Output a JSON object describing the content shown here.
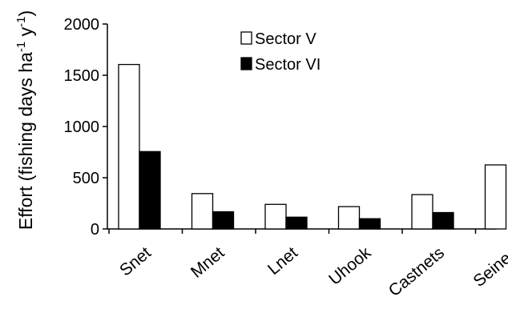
{
  "chart_data": {
    "type": "bar",
    "categories": [
      "Snet",
      "Mnet",
      "Lnet",
      "Uhook",
      "Castnets",
      "Seines"
    ],
    "series": [
      {
        "name": "Sector V",
        "values": [
          1605,
          345,
          240,
          218,
          335,
          625
        ],
        "color": "#ffffff"
      },
      {
        "name": "Sector VI",
        "values": [
          755,
          168,
          115,
          100,
          160,
          0
        ],
        "color": "#000000"
      }
    ],
    "ylabel_parts": {
      "main": "Effort (fishing days ha",
      "sup1": "-1",
      "mid": " y",
      "sup2": "-1",
      "end": ")"
    },
    "ylim": [
      0,
      2000
    ],
    "yticks": [
      0,
      500,
      1000,
      1500,
      2000
    ],
    "grid": false,
    "legend_position": "top-center"
  }
}
